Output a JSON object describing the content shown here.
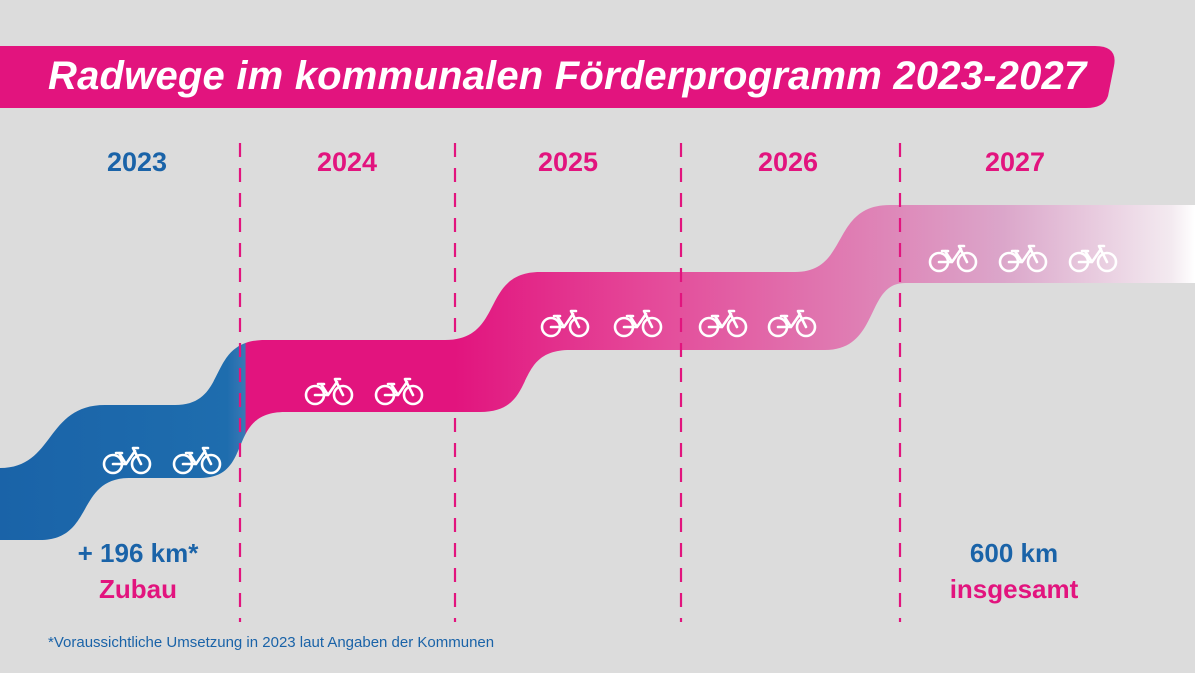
{
  "title": "Radwege im kommunalen Förderprogramm 2023-2027",
  "years": [
    {
      "label": "2023",
      "color": "#1a63a8"
    },
    {
      "label": "2024",
      "color": "#e2147e"
    },
    {
      "label": "2025",
      "color": "#e2147e"
    },
    {
      "label": "2026",
      "color": "#e2147e"
    },
    {
      "label": "2027",
      "color": "#e2147e"
    }
  ],
  "stats": {
    "left_value": "+ 196 km*",
    "left_caption": "Zubau",
    "right_value": "600 km",
    "right_caption": "insgesamt"
  },
  "footnote": "*Voraussichtliche Umsetzung in 2023 laut Angaben der Kommunen",
  "bike_counts": [
    2,
    2,
    4,
    3
  ],
  "colors": {
    "background": "#dcdcdc",
    "magenta": "#e2147e",
    "blue": "#1a63a8",
    "pale_end": "#ffffff"
  },
  "icons": {
    "bike": "bicycle-icon"
  }
}
